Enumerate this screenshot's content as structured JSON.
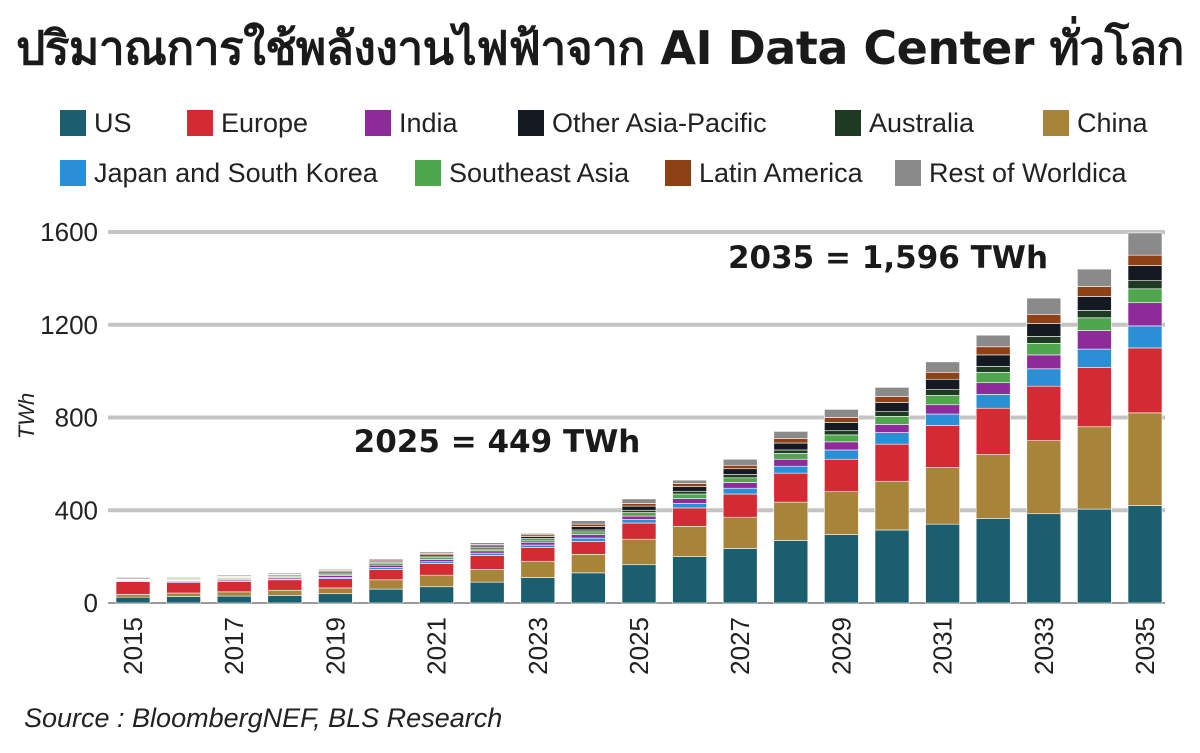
{
  "chart_data": {
    "type": "bar",
    "stacked": true,
    "title": "ปริมาณการใช้พลังงานไฟฟ้าจาก AI Data Center ทั่วโลก",
    "ylabel": "TWh",
    "xlabel": "",
    "ylim": [
      0,
      1600
    ],
    "yticks": [
      0,
      400,
      800,
      1200,
      1600
    ],
    "grid": true,
    "legend_position": "top",
    "categories": [
      "2015",
      "2016",
      "2017",
      "2018",
      "2019",
      "2020",
      "2021",
      "2022",
      "2023",
      "2024",
      "2025",
      "2026",
      "2027",
      "2028",
      "2029",
      "2030",
      "2031",
      "2032",
      "2033",
      "2034",
      "2035"
    ],
    "xtick_labels": [
      "2015",
      "2017",
      "2019",
      "2021",
      "2023",
      "2025",
      "2027",
      "2029",
      "2031",
      "2033",
      "2035"
    ],
    "series": [
      {
        "name": "US",
        "color": "#1b5e6e",
        "values": [
          25,
          28,
          30,
          33,
          40,
          60,
          70,
          90,
          110,
          130,
          165,
          200,
          235,
          270,
          295,
          315,
          340,
          365,
          385,
          405,
          420
        ]
      },
      {
        "name": "China",
        "color": "#a8833a",
        "values": [
          12,
          15,
          18,
          22,
          25,
          40,
          50,
          55,
          70,
          80,
          110,
          130,
          135,
          165,
          185,
          210,
          245,
          275,
          315,
          355,
          400
        ]
      },
      {
        "name": "Europe",
        "color": "#d42a33",
        "values": [
          55,
          45,
          45,
          45,
          40,
          45,
          50,
          60,
          60,
          55,
          70,
          80,
          100,
          125,
          140,
          160,
          180,
          200,
          235,
          255,
          280
        ]
      },
      {
        "name": "Japan and South Korea",
        "color": "#2b8fd6",
        "values": [
          0,
          0,
          3,
          4,
          5,
          8,
          8,
          10,
          10,
          15,
          15,
          20,
          25,
          30,
          40,
          50,
          50,
          60,
          75,
          80,
          95
        ]
      },
      {
        "name": "India",
        "color": "#8f2a9a",
        "values": [
          3,
          4,
          5,
          6,
          8,
          10,
          10,
          10,
          12,
          15,
          15,
          20,
          25,
          30,
          35,
          35,
          40,
          50,
          60,
          80,
          100
        ]
      },
      {
        "name": "Southeast Asia",
        "color": "#4ea64d",
        "values": [
          3,
          4,
          5,
          5,
          7,
          7,
          8,
          8,
          10,
          12,
          15,
          20,
          20,
          25,
          30,
          35,
          40,
          45,
          50,
          55,
          60
        ]
      },
      {
        "name": "Australia",
        "color": "#1e3a22",
        "values": [
          2,
          3,
          3,
          3,
          5,
          5,
          6,
          6,
          7,
          8,
          10,
          12,
          14,
          15,
          18,
          20,
          25,
          25,
          30,
          32,
          35
        ]
      },
      {
        "name": "Other Asia-Pacific",
        "color": "#151a22",
        "values": [
          2,
          3,
          3,
          4,
          5,
          5,
          6,
          7,
          8,
          15,
          18,
          20,
          25,
          30,
          35,
          40,
          45,
          50,
          55,
          60,
          65
        ]
      },
      {
        "name": "Latin America",
        "color": "#8e4016",
        "values": [
          2,
          3,
          3,
          3,
          5,
          5,
          6,
          6,
          7,
          10,
          11,
          13,
          15,
          20,
          22,
          25,
          30,
          35,
          40,
          43,
          45
        ]
      },
      {
        "name": "Rest of Worldica",
        "color": "#8a8a8a",
        "values": [
          6,
          5,
          5,
          5,
          5,
          5,
          6,
          8,
          6,
          15,
          20,
          15,
          26,
          30,
          35,
          40,
          45,
          50,
          70,
          75,
          96
        ]
      }
    ],
    "annotations": [
      {
        "text": "2025 = 449 TWh",
        "year": "2025",
        "value": 449
      },
      {
        "text": "2035 = 1,596 TWh",
        "year": "2035",
        "value": 1596
      }
    ]
  },
  "legend": {
    "row1": [
      "US",
      "Europe",
      "India",
      "Other Asia-Pacific",
      "Australia",
      "China"
    ],
    "row2": [
      "Japan and South Korea",
      "Southeast Asia",
      "Latin America",
      "Rest of Worldica"
    ]
  },
  "source": "Source : BloombergNEF, BLS Research"
}
